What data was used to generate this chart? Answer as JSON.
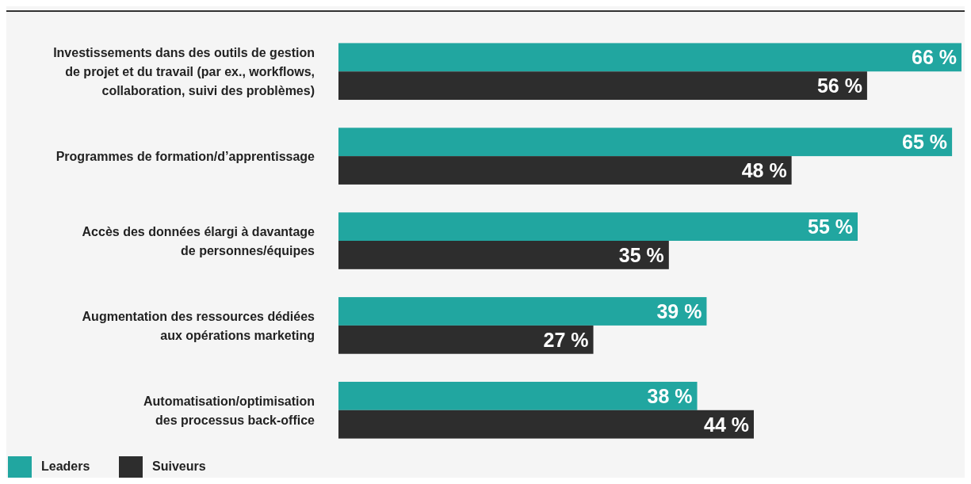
{
  "chart_data": {
    "type": "bar",
    "orientation": "horizontal",
    "categories": [
      "Investissements dans des outils de gestion\nde projet et du travail (par ex., workflows,\ncollaboration, suivi des problèmes)",
      "Programmes de formation/d’apprentissage",
      "Accès des données élargi à davantage\nde personnes/équipes",
      "Augmentation des ressources dédiées\naux opérations marketing",
      "Automatisation/optimisation\ndes processus back-office"
    ],
    "series": [
      {
        "name": "Leaders",
        "color": "#21a6a0",
        "values": [
          66,
          65,
          55,
          39,
          38
        ],
        "value_labels": [
          "66 %",
          "65 %",
          "55 %",
          "39 %",
          "38 %"
        ]
      },
      {
        "name": "Suiveurs",
        "color": "#2d2d2d",
        "values": [
          56,
          48,
          35,
          27,
          44
        ],
        "value_labels": [
          "56 %",
          "48 %",
          "35 %",
          "27 %",
          "44 %"
        ]
      }
    ],
    "legend": "bottom left"
  }
}
